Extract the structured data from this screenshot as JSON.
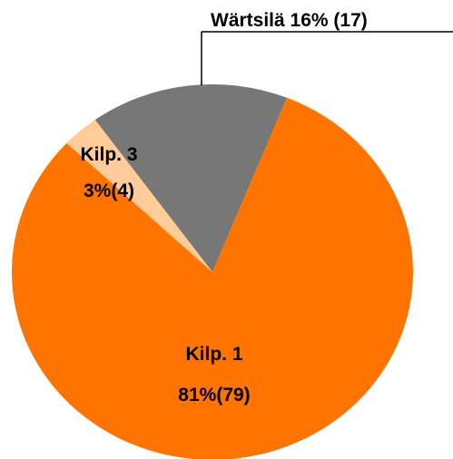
{
  "chart_data": {
    "type": "pie",
    "categories": [
      "Wärtsilä",
      "Kilp. 1",
      "Kilp. 3"
    ],
    "values": [
      16,
      81,
      3
    ],
    "value_labels": [
      "16%",
      "81%",
      "3%"
    ],
    "count_labels": [
      "(17)",
      "(79)",
      "(4)"
    ],
    "colors": [
      "#777777",
      "#ff7400",
      "#ffcc99"
    ]
  }
}
